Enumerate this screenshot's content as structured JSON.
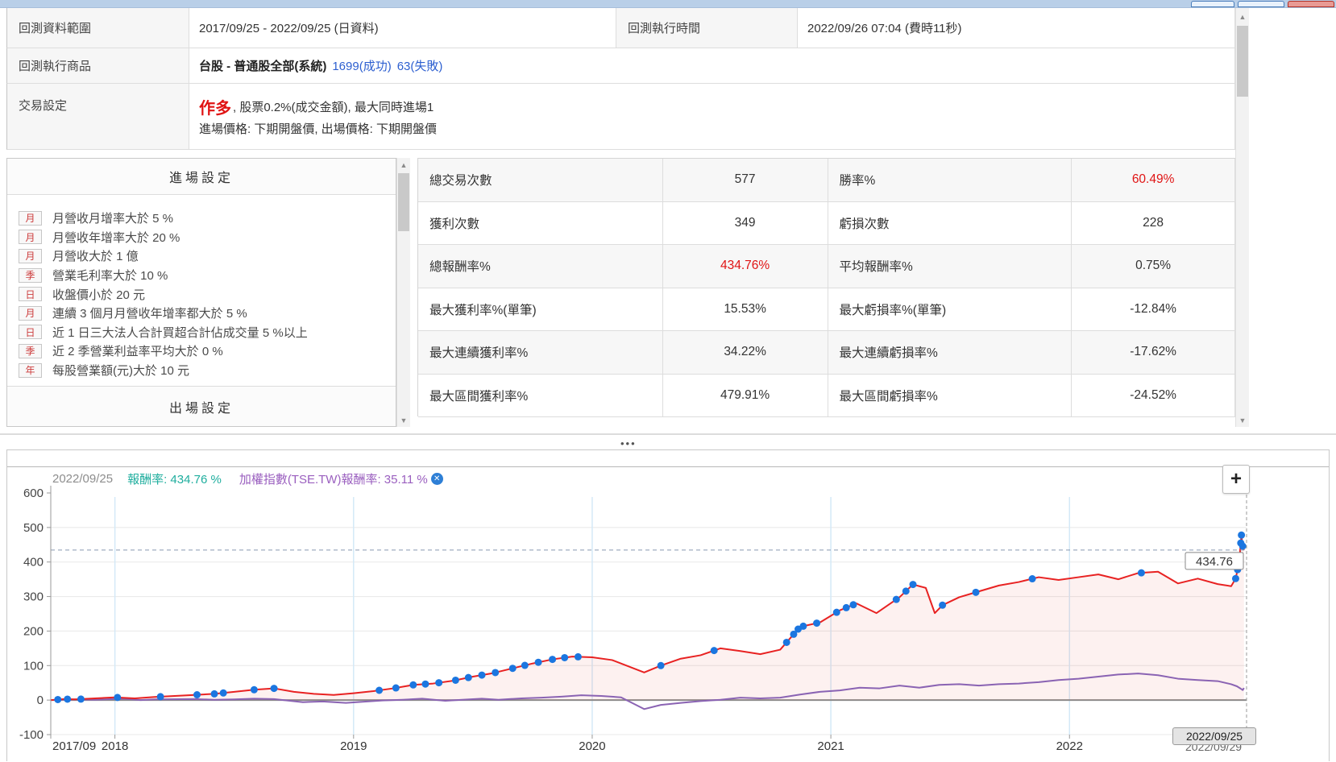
{
  "colors": {
    "highlight_red": "#e01414",
    "link_blue": "#2d5fd0",
    "titlebar_blue": "#b9cfe8"
  },
  "backtest": {
    "range_label": "回測資料範圍",
    "range_value": "2017/09/25 - 2022/09/25 (日資料)",
    "time_label": "回測執行時間",
    "time_value": "2022/09/26 07:04 (費時11秒)",
    "product_label": "回測執行商品",
    "product_value": "台股 - 普通股全部(系統)",
    "product_success": "1699(成功)",
    "product_fail": "63(失敗)",
    "trade_label": "交易設定",
    "trade_direction": "作多",
    "trade_detail": ", 股票0.2%(成交金額), 最大同時進場1",
    "trade_detail2": "進場價格: 下期開盤價, 出場價格: 下期開盤價"
  },
  "entry_panel": {
    "header": "進場設定",
    "footer": "出場設定",
    "conditions": [
      {
        "tag": "月",
        "text": "月營收月增率大於 5 %"
      },
      {
        "tag": "月",
        "text": "月營收年增率大於 20 %"
      },
      {
        "tag": "月",
        "text": "月營收大於 1 億"
      },
      {
        "tag": "季",
        "text": "營業毛利率大於 10 %"
      },
      {
        "tag": "日",
        "text": "收盤價小於 20 元"
      },
      {
        "tag": "月",
        "text": "連續 3 個月月營收年增率都大於 5 %"
      },
      {
        "tag": "日",
        "text": "近 1 日三大法人合計買超合計佔成交量 5 %以上"
      },
      {
        "tag": "季",
        "text": "近 2 季營業利益率平均大於 0 %"
      },
      {
        "tag": "年",
        "text": "每股營業額(元)大於 10 元"
      }
    ]
  },
  "stats": {
    "rows": [
      {
        "label1": "總交易次數",
        "value1": "577",
        "red1": false,
        "label2": "勝率%",
        "value2": "60.49%",
        "red2": true
      },
      {
        "label1": "獲利次數",
        "value1": "349",
        "red1": false,
        "label2": "虧損次數",
        "value2": "228",
        "red2": false
      },
      {
        "label1": "總報酬率%",
        "value1": "434.76%",
        "red1": true,
        "label2": "平均報酬率%",
        "value2": "0.75%",
        "red2": false
      },
      {
        "label1": "最大獲利率%(單筆)",
        "value1": "15.53%",
        "red1": false,
        "label2": "最大虧損率%(單筆)",
        "value2": "-12.84%",
        "red2": false
      },
      {
        "label1": "最大連續獲利率%",
        "value1": "34.22%",
        "red1": false,
        "label2": "最大連續虧損率%",
        "value2": "-17.62%",
        "red2": false
      },
      {
        "label1": "最大區間獲利率%",
        "value1": "479.91%",
        "red1": false,
        "label2": "最大區間虧損率%",
        "value2": "-24.52%",
        "red2": false
      }
    ]
  },
  "splitter_dots": "•••",
  "chart_data": {
    "type": "line",
    "legend": {
      "date": "2022/09/25",
      "strategy_label": "報酬率: 434.76 %",
      "benchmark_label": "加權指數(TSE.TW)報酬率: 35.11 %",
      "strategy_color": "#1fae9e",
      "benchmark_color": "#9a5fbf"
    },
    "zoom_button": "+",
    "ylim": [
      -100,
      600
    ],
    "yticks": [
      600,
      500,
      400,
      300,
      200,
      100,
      0,
      -100
    ],
    "x_start": "2017/09/25",
    "x_end": "2022/09/29",
    "xticks": [
      {
        "date": "2017/09/25",
        "label": "2017/09",
        "anchor": "start"
      },
      {
        "date": "2018/01/01",
        "label": "2018",
        "anchor": "middle"
      },
      {
        "date": "2019/01/01",
        "label": "2019",
        "anchor": "middle"
      },
      {
        "date": "2020/01/01",
        "label": "2020",
        "anchor": "middle"
      },
      {
        "date": "2021/01/01",
        "label": "2021",
        "anchor": "middle"
      },
      {
        "date": "2022/01/01",
        "label": "2022",
        "anchor": "middle"
      }
    ],
    "end_label": "2022/09/25",
    "end_label_behind": "2022/09/29",
    "target_line": {
      "value": 434.76,
      "label": "434.76",
      "color": "#8896b0"
    },
    "grid": {
      "v_color": "#d4e9f7",
      "h_color": "#e8e8e8",
      "zero_color": "#8a8a8a",
      "axis_color": "#999999"
    },
    "series": [
      {
        "name": "報酬率",
        "color": "#e82222",
        "fill": "rgba(232,80,70,0.08)",
        "points": [
          [
            "2017/09/25",
            0
          ],
          [
            "2017/10/15",
            3
          ],
          [
            "2017/11/01",
            2
          ],
          [
            "2017/12/01",
            5
          ],
          [
            "2018/01/01",
            8
          ],
          [
            "2018/02/01",
            5
          ],
          [
            "2018/03/01",
            9
          ],
          [
            "2018/04/01",
            12
          ],
          [
            "2018/05/01",
            15
          ],
          [
            "2018/06/01",
            18
          ],
          [
            "2018/07/01",
            24
          ],
          [
            "2018/08/01",
            30
          ],
          [
            "2018/09/01",
            34
          ],
          [
            "2018/10/01",
            24
          ],
          [
            "2018/11/01",
            18
          ],
          [
            "2018/12/01",
            15
          ],
          [
            "2019/01/01",
            20
          ],
          [
            "2019/02/01",
            26
          ],
          [
            "2019/03/01",
            34
          ],
          [
            "2019/04/01",
            44
          ],
          [
            "2019/05/01",
            48
          ],
          [
            "2019/06/01",
            56
          ],
          [
            "2019/07/01",
            68
          ],
          [
            "2019/08/01",
            78
          ],
          [
            "2019/09/01",
            92
          ],
          [
            "2019/10/01",
            106
          ],
          [
            "2019/11/01",
            118
          ],
          [
            "2019/12/01",
            126
          ],
          [
            "2020/01/01",
            124
          ],
          [
            "2020/02/01",
            116
          ],
          [
            "2020/03/20",
            80
          ],
          [
            "2020/04/15",
            100
          ],
          [
            "2020/05/15",
            120
          ],
          [
            "2020/06/15",
            130
          ],
          [
            "2020/07/15",
            150
          ],
          [
            "2020/08/15",
            142
          ],
          [
            "2020/09/15",
            133
          ],
          [
            "2020/10/15",
            146
          ],
          [
            "2020/11/15",
            212
          ],
          [
            "2020/12/15",
            225
          ],
          [
            "2021/01/15",
            260
          ],
          [
            "2021/02/10",
            280
          ],
          [
            "2021/03/10",
            252
          ],
          [
            "2021/04/15",
            298
          ],
          [
            "2021/05/05",
            335
          ],
          [
            "2021/05/25",
            325
          ],
          [
            "2021/06/08",
            252
          ],
          [
            "2021/06/20",
            275
          ],
          [
            "2021/07/15",
            298
          ],
          [
            "2021/08/15",
            315
          ],
          [
            "2021/09/15",
            332
          ],
          [
            "2021/10/15",
            342
          ],
          [
            "2021/11/15",
            356
          ],
          [
            "2021/12/15",
            348
          ],
          [
            "2022/01/15",
            356
          ],
          [
            "2022/02/15",
            364
          ],
          [
            "2022/03/15",
            350
          ],
          [
            "2022/04/15",
            368
          ],
          [
            "2022/05/15",
            372
          ],
          [
            "2022/06/15",
            338
          ],
          [
            "2022/07/15",
            352
          ],
          [
            "2022/08/15",
            336
          ],
          [
            "2022/09/05",
            330
          ],
          [
            "2022/09/12",
            352
          ],
          [
            "2022/09/15",
            378
          ],
          [
            "2022/09/18",
            412
          ],
          [
            "2022/09/20",
            455
          ],
          [
            "2022/09/21",
            478
          ],
          [
            "2022/09/22",
            460
          ],
          [
            "2022/09/23",
            446
          ],
          [
            "2022/09/25",
            434.76
          ]
        ]
      },
      {
        "name": "加權指數(TSE.TW)報酬率",
        "color": "#8a63b3",
        "fill": null,
        "points": [
          [
            "2017/09/25",
            0
          ],
          [
            "2017/11/01",
            2
          ],
          [
            "2017/12/01",
            1
          ],
          [
            "2018/01/15",
            4
          ],
          [
            "2018/02/10",
            0
          ],
          [
            "2018/03/01",
            2
          ],
          [
            "2018/05/01",
            3
          ],
          [
            "2018/06/01",
            1
          ],
          [
            "2018/07/01",
            2
          ],
          [
            "2018/08/01",
            4
          ],
          [
            "2018/09/01",
            3
          ],
          [
            "2018/10/15",
            -6
          ],
          [
            "2018/11/15",
            -4
          ],
          [
            "2018/12/20",
            -8
          ],
          [
            "2019/01/15",
            -5
          ],
          [
            "2019/02/15",
            -1
          ],
          [
            "2019/03/15",
            1
          ],
          [
            "2019/04/15",
            4
          ],
          [
            "2019/05/20",
            -2
          ],
          [
            "2019/06/15",
            1
          ],
          [
            "2019/07/15",
            4
          ],
          [
            "2019/08/10",
            1
          ],
          [
            "2019/09/15",
            5
          ],
          [
            "2019/10/15",
            7
          ],
          [
            "2019/11/15",
            10
          ],
          [
            "2019/12/15",
            14
          ],
          [
            "2020/01/15",
            12
          ],
          [
            "2020/02/15",
            8
          ],
          [
            "2020/03/20",
            -26
          ],
          [
            "2020/04/15",
            -14
          ],
          [
            "2020/05/15",
            -8
          ],
          [
            "2020/06/15",
            -3
          ],
          [
            "2020/07/15",
            1
          ],
          [
            "2020/08/15",
            7
          ],
          [
            "2020/09/15",
            5
          ],
          [
            "2020/10/15",
            7
          ],
          [
            "2020/11/15",
            16
          ],
          [
            "2020/12/15",
            24
          ],
          [
            "2021/01/15",
            28
          ],
          [
            "2021/02/15",
            36
          ],
          [
            "2021/03/15",
            34
          ],
          [
            "2021/04/15",
            42
          ],
          [
            "2021/05/15",
            36
          ],
          [
            "2021/06/15",
            44
          ],
          [
            "2021/07/15",
            46
          ],
          [
            "2021/08/15",
            42
          ],
          [
            "2021/09/15",
            46
          ],
          [
            "2021/10/15",
            48
          ],
          [
            "2021/11/15",
            52
          ],
          [
            "2021/12/15",
            58
          ],
          [
            "2022/01/15",
            62
          ],
          [
            "2022/02/15",
            68
          ],
          [
            "2022/03/15",
            74
          ],
          [
            "2022/04/15",
            77
          ],
          [
            "2022/05/15",
            72
          ],
          [
            "2022/06/15",
            62
          ],
          [
            "2022/07/15",
            58
          ],
          [
            "2022/08/15",
            55
          ],
          [
            "2022/09/05",
            46
          ],
          [
            "2022/09/14",
            40
          ],
          [
            "2022/09/20",
            33
          ],
          [
            "2022/09/23",
            29
          ],
          [
            "2022/09/25",
            35.11
          ]
        ]
      }
    ],
    "markers": {
      "color": "#1b76e0",
      "series": "報酬率",
      "dates": [
        "2017/10/05",
        "2017/10/20",
        "2017/11/10",
        "2018/01/05",
        "2018/03/10",
        "2018/05/05",
        "2018/06/01",
        "2018/06/15",
        "2018/08/01",
        "2018/09/01",
        "2019/02/10",
        "2019/03/05",
        "2019/04/01",
        "2019/04/20",
        "2019/05/10",
        "2019/06/05",
        "2019/06/25",
        "2019/07/15",
        "2019/08/05",
        "2019/09/01",
        "2019/09/20",
        "2019/10/10",
        "2019/11/01",
        "2019/11/20",
        "2019/12/10",
        "2020/04/15",
        "2020/07/05",
        "2020/10/25",
        "2020/11/05",
        "2020/11/12",
        "2020/11/20",
        "2020/12/10",
        "2021/01/10",
        "2021/01/25",
        "2021/02/05",
        "2021/04/10",
        "2021/04/25",
        "2021/05/05",
        "2021/06/20",
        "2021/08/10",
        "2021/11/05",
        "2022/04/20",
        "2022/09/12",
        "2022/09/15",
        "2022/09/18",
        "2022/09/20",
        "2022/09/21",
        "2022/09/23"
      ]
    }
  }
}
